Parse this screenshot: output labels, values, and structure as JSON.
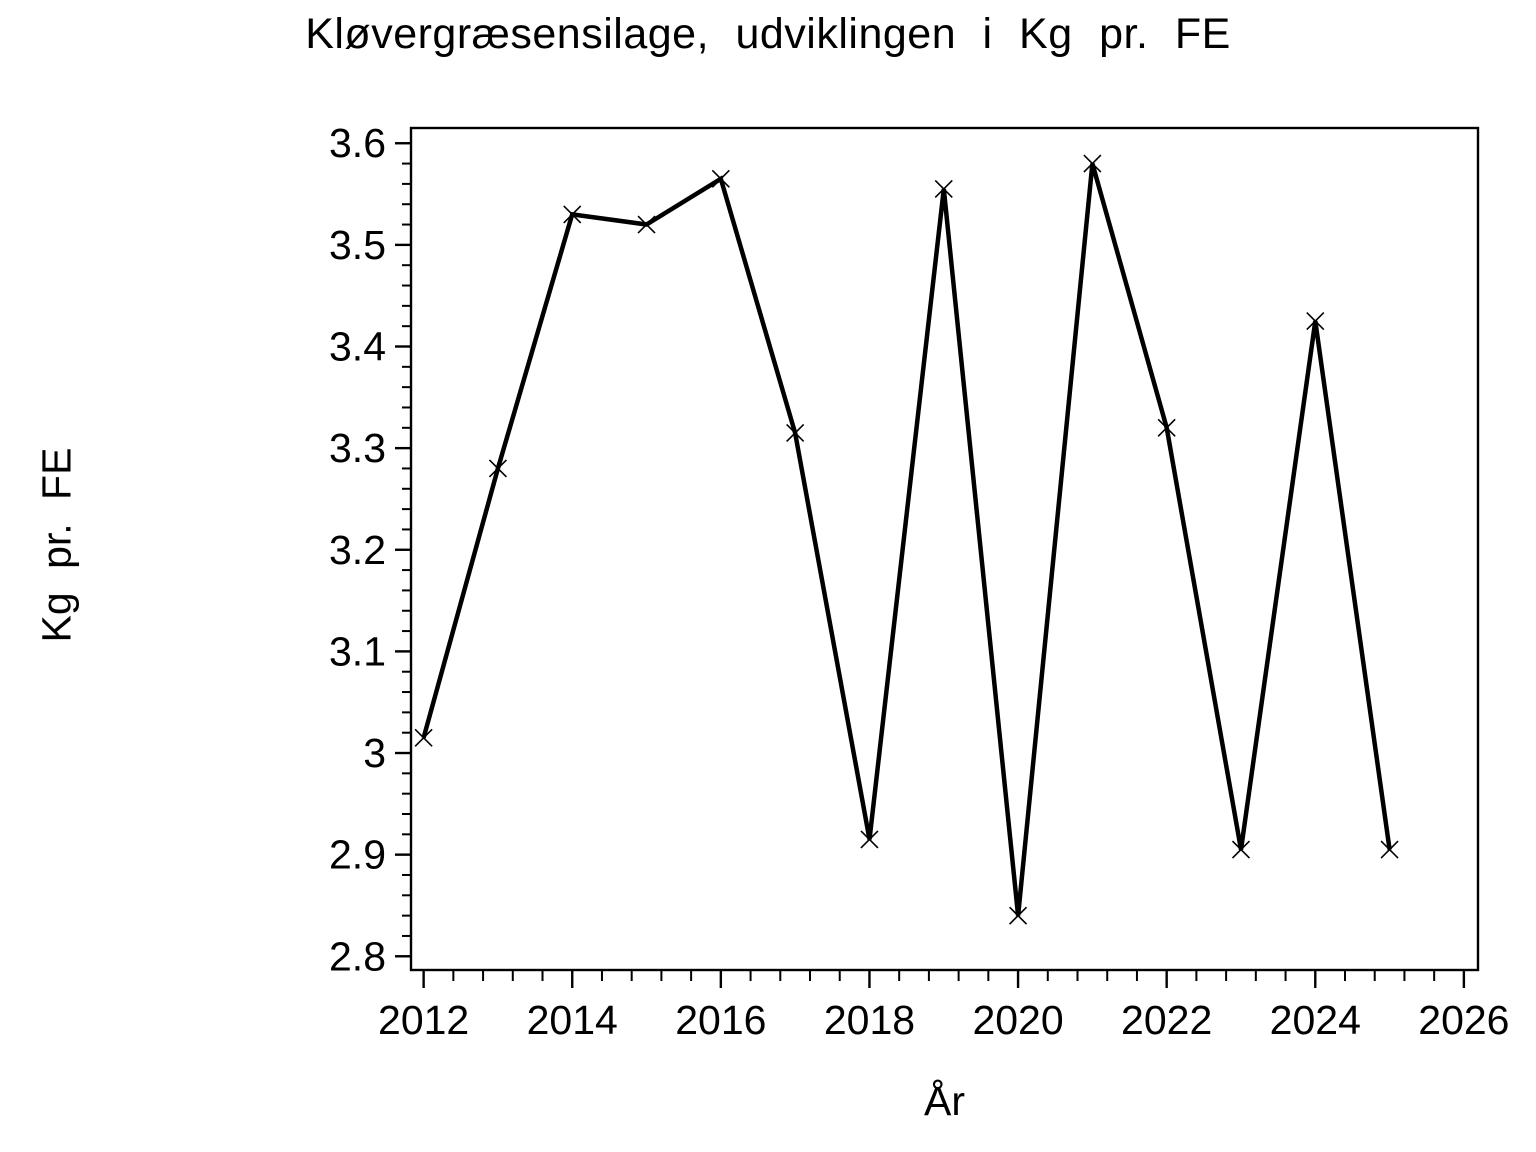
{
  "chart_data": {
    "type": "line",
    "title": "Kløvergræsensilage, udviklingen i Kg pr. FE",
    "xlabel": "År",
    "ylabel": "Kg pr. FE",
    "x": [
      2012,
      2013,
      2014,
      2015,
      2016,
      2017,
      2018,
      2019,
      2020,
      2021,
      2022,
      2023,
      2024,
      2025
    ],
    "values": [
      3.015,
      3.28,
      3.53,
      3.52,
      3.565,
      3.315,
      2.915,
      3.555,
      2.84,
      3.58,
      3.32,
      2.905,
      3.425,
      2.905
    ],
    "xlim": [
      2011.83,
      2026.19
    ],
    "ylim": [
      2.7865,
      3.615
    ],
    "x_major_ticks": [
      2012,
      2014,
      2016,
      2018,
      2020,
      2022,
      2024,
      2026
    ],
    "x_tick_labels": [
      "2012",
      "2014",
      "2016",
      "2018",
      "2020",
      "2022",
      "2024",
      "2026"
    ],
    "x_minor_step": 0.4,
    "y_major_ticks": [
      2.8,
      2.9,
      3.0,
      3.1,
      3.2,
      3.3,
      3.4,
      3.5,
      3.6
    ],
    "y_tick_labels": [
      "2.8",
      "2.9",
      "3",
      "3.1",
      "3.2",
      "3.3",
      "3.4",
      "3.5",
      "3.6"
    ],
    "y_minor_step": 0.02,
    "marker": "x",
    "grid": false,
    "legend": null,
    "line_color": "#000000",
    "axis_color": "#000000",
    "text_color": "#000000",
    "background_color": "#ffffff"
  }
}
